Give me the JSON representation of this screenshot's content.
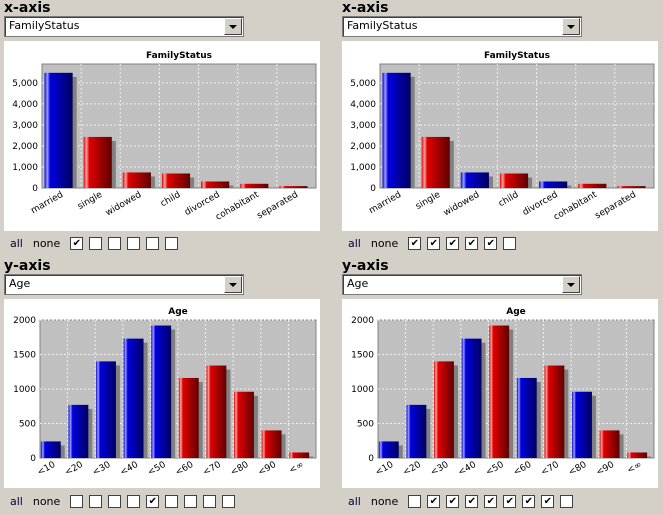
{
  "panels": [
    {
      "xaxis": {
        "label": "x-axis",
        "selected": "FamilyStatus",
        "checks": [
          true,
          false,
          false,
          false,
          false,
          false
        ]
      },
      "yaxis": {
        "label": "y-axis",
        "selected": "Age",
        "checks": [
          false,
          false,
          false,
          false,
          true,
          false,
          false,
          false,
          false
        ]
      },
      "all": "all",
      "none": "none"
    },
    {
      "xaxis": {
        "label": "x-axis",
        "selected": "FamilyStatus",
        "checks": [
          true,
          true,
          true,
          true,
          true,
          false
        ]
      },
      "yaxis": {
        "label": "y-axis",
        "selected": "Age",
        "checks": [
          false,
          true,
          true,
          true,
          true,
          true,
          true,
          true,
          false
        ]
      },
      "all": "all",
      "none": "none"
    }
  ],
  "colors": {
    "blue": "#0000e0",
    "red": "#e00000",
    "plot_bg": "#c0c0c0"
  },
  "chart_data": [
    {
      "type": "bar",
      "title": "FamilyStatus",
      "categories": [
        "married",
        "single",
        "widowed",
        "child",
        "divorced",
        "cohabitant",
        "separated"
      ],
      "values": [
        5480,
        2430,
        740,
        690,
        310,
        200,
        90
      ],
      "ylim": [
        0,
        5900
      ],
      "yticks": [
        "0",
        "1,000",
        "2,000",
        "3,000",
        "4,000",
        "5,000"
      ],
      "ytick_values": [
        0,
        1000,
        2000,
        3000,
        4000,
        5000
      ],
      "bar_colors": [
        "blue",
        "red",
        "red",
        "red",
        "red",
        "red",
        "red"
      ],
      "grid": true
    },
    {
      "type": "bar",
      "title": "Age",
      "categories": [
        "<10",
        "<20",
        "<30",
        "<40",
        "<50",
        "<60",
        "<70",
        "<80",
        "<90",
        "<∞"
      ],
      "values": [
        240,
        770,
        1400,
        1730,
        1920,
        1160,
        1340,
        960,
        400,
        80
      ],
      "ylim": [
        0,
        2000
      ],
      "yticks": [
        "0",
        "500",
        "1000",
        "1500",
        "2000"
      ],
      "ytick_values": [
        0,
        500,
        1000,
        1500,
        2000
      ],
      "bar_colors": [
        "blue",
        "blue",
        "blue",
        "blue",
        "blue",
        "red",
        "red",
        "red",
        "red",
        "red"
      ],
      "grid": true
    },
    {
      "type": "bar",
      "title": "FamilyStatus",
      "categories": [
        "married",
        "single",
        "widowed",
        "child",
        "divorced",
        "cohabitant",
        "separated"
      ],
      "values": [
        5480,
        2430,
        740,
        690,
        310,
        200,
        90
      ],
      "ylim": [
        0,
        5900
      ],
      "yticks": [
        "0",
        "1,000",
        "2,000",
        "3,000",
        "4,000",
        "5,000"
      ],
      "ytick_values": [
        0,
        1000,
        2000,
        3000,
        4000,
        5000
      ],
      "bar_colors": [
        "blue",
        "red",
        "blue",
        "red",
        "blue",
        "red",
        "red"
      ],
      "grid": true
    },
    {
      "type": "bar",
      "title": "Age",
      "categories": [
        "<10",
        "<20",
        "<30",
        "<40",
        "<50",
        "<60",
        "<70",
        "<80",
        "<90",
        "<∞"
      ],
      "values": [
        240,
        770,
        1400,
        1730,
        1920,
        1160,
        1340,
        960,
        400,
        80
      ],
      "ylim": [
        0,
        2000
      ],
      "yticks": [
        "0",
        "500",
        "1000",
        "1500",
        "2000"
      ],
      "ytick_values": [
        0,
        500,
        1000,
        1500,
        2000
      ],
      "bar_colors": [
        "blue",
        "blue",
        "red",
        "blue",
        "red",
        "blue",
        "red",
        "blue",
        "red",
        "red"
      ],
      "grid": true
    }
  ]
}
